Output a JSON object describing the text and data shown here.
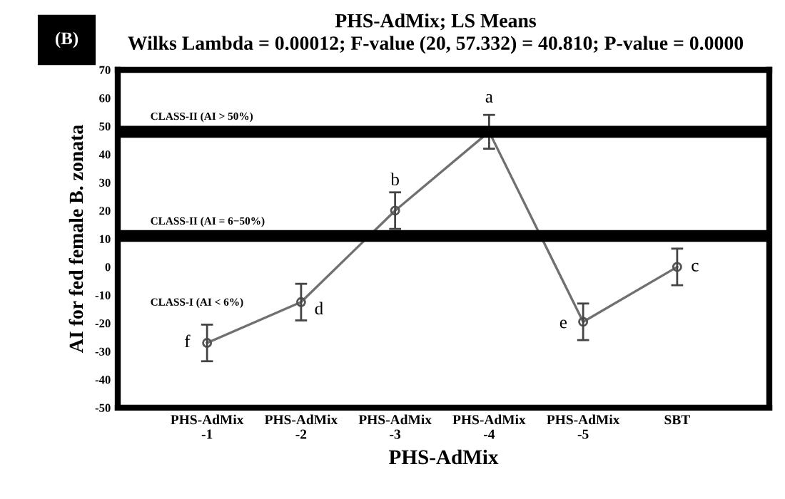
{
  "chart_data": {
    "type": "line",
    "title": "PHS-AdMix; LS Means",
    "subtitle": "Wilks Lambda = 0.00012; F-value (20, 57.332) = 40.810; P-value = 0.0000",
    "xlabel": "PHS-AdMix",
    "ylabel": "AI for fed female B. zonata",
    "categories": [
      "PHS-AdMix\n-1",
      "PHS-AdMix\n-2",
      "PHS-AdMix\n-3",
      "PHS-AdMix\n-4",
      "PHS-AdMix\n-5",
      "SBT"
    ],
    "series": [
      {
        "color": "#707070",
        "values": [
          -27,
          -12.5,
          20,
          48,
          -19.5,
          0
        ],
        "errors": [
          6.5,
          6.5,
          6.5,
          6,
          6.5,
          6.5
        ]
      }
    ],
    "marker": "circle",
    "ylim": [
      -50,
      70
    ],
    "yticks": [
      -50,
      -40,
      -30,
      -20,
      -10,
      0,
      10,
      20,
      30,
      40,
      50,
      60,
      70
    ],
    "grid": false,
    "legend": false,
    "ref_lines": [
      {
        "axis": "y",
        "value": 48,
        "color": "#000000"
      },
      {
        "axis": "y",
        "value": 11,
        "color": "#000000"
      }
    ],
    "annotations": [
      "(B)",
      "CLASS-II (AI > 50%)",
      "CLASS-II (AI = 6−50%)",
      "CLASS-I (AI < 6%)",
      {
        "text": "f",
        "x": "PHS-AdMix\n-1",
        "y": -27
      },
      {
        "text": "d",
        "x": "PHS-AdMix\n-2",
        "y": -12.5
      },
      {
        "text": "b",
        "x": "PHS-AdMix\n-3",
        "y": 20
      },
      {
        "text": "a",
        "x": "PHS-AdMix\n-4",
        "y": 48
      },
      {
        "text": "e",
        "x": "PHS-AdMix\n-5",
        "y": -19.5
      },
      {
        "text": "c",
        "x": "SBT",
        "y": 0
      }
    ]
  }
}
